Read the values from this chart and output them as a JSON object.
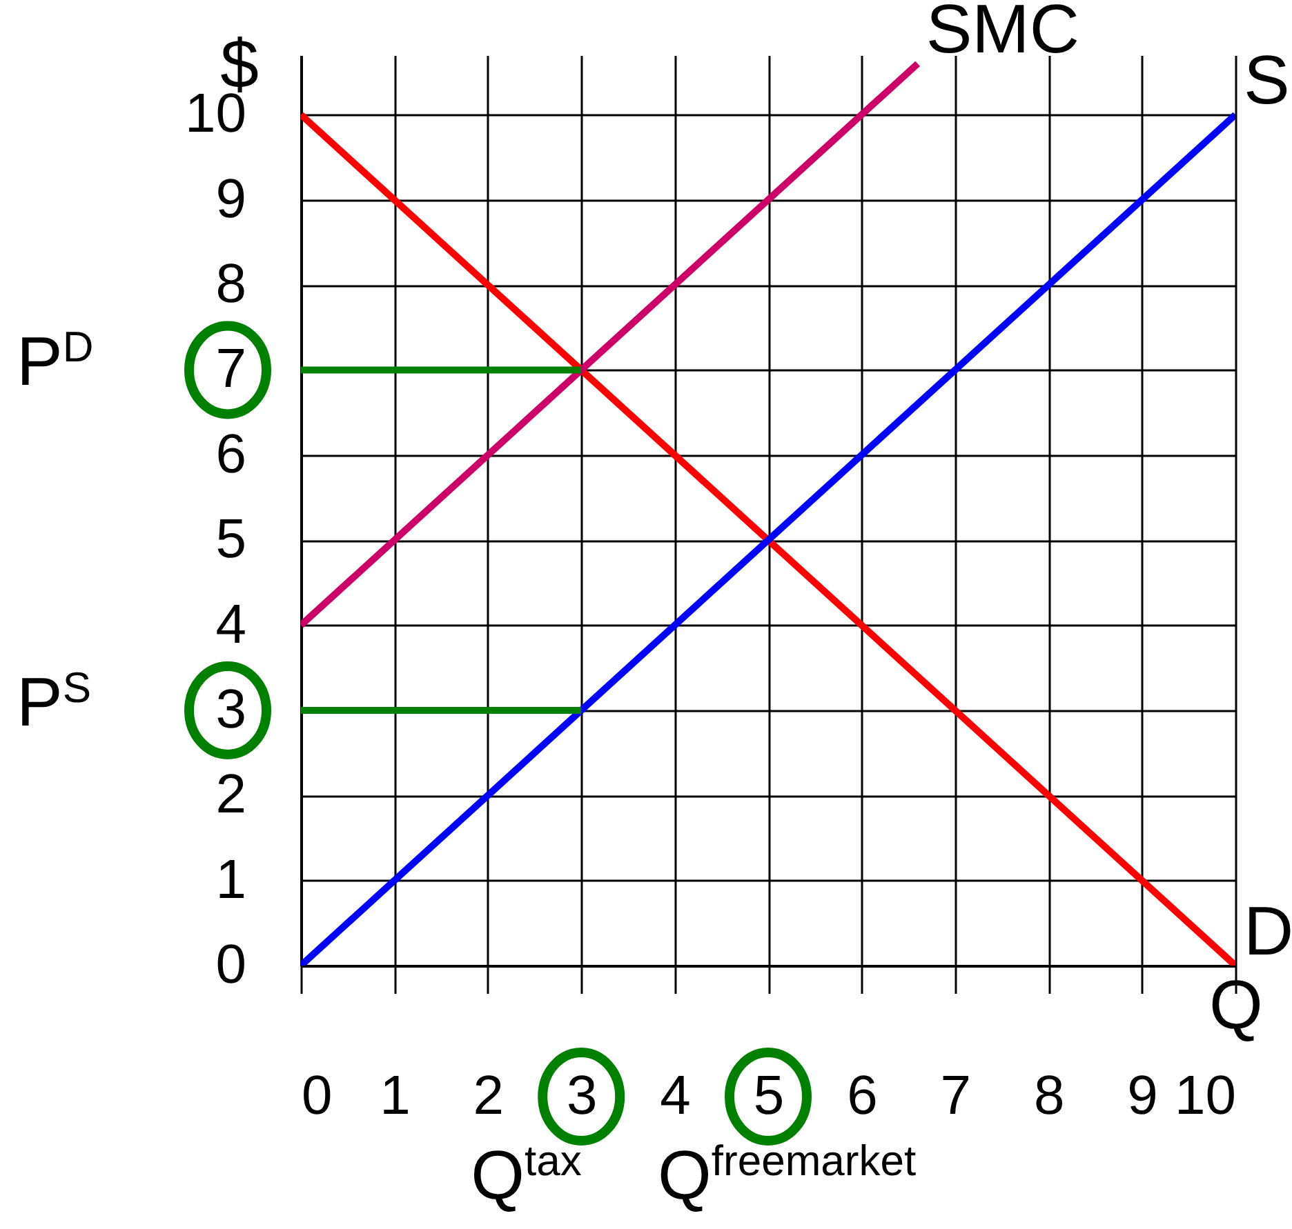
{
  "chart_data": {
    "type": "line",
    "xlabel": "Q",
    "ylabel": "$",
    "xlim": [
      0,
      10
    ],
    "ylim": [
      0,
      10.7
    ],
    "xticks": [
      0,
      1,
      2,
      3,
      4,
      5,
      6,
      7,
      8,
      9,
      10
    ],
    "yticks": [
      0,
      1,
      2,
      3,
      4,
      5,
      6,
      7,
      8,
      9,
      10
    ],
    "grid": true,
    "series": [
      {
        "name": "D",
        "color": "#ff0000",
        "x": [
          0,
          10
        ],
        "values": [
          10,
          0
        ]
      },
      {
        "name": "S",
        "color": "#0000ff",
        "x": [
          0,
          10
        ],
        "values": [
          0,
          10
        ]
      },
      {
        "name": "SMC",
        "color": "#cc0066",
        "x": [
          0,
          6.6
        ],
        "values": [
          4,
          10.6
        ]
      },
      {
        "color": "#008000",
        "x": [
          0,
          3
        ],
        "values": [
          7,
          7
        ]
      },
      {
        "color": "#008000",
        "x": [
          0,
          3
        ],
        "values": [
          3,
          3
        ]
      }
    ],
    "annotations": [
      "P$^{D}$",
      "P$^{S}$",
      "Q$^{tax}$",
      "Q$^{freemarket}$"
    ]
  }
}
